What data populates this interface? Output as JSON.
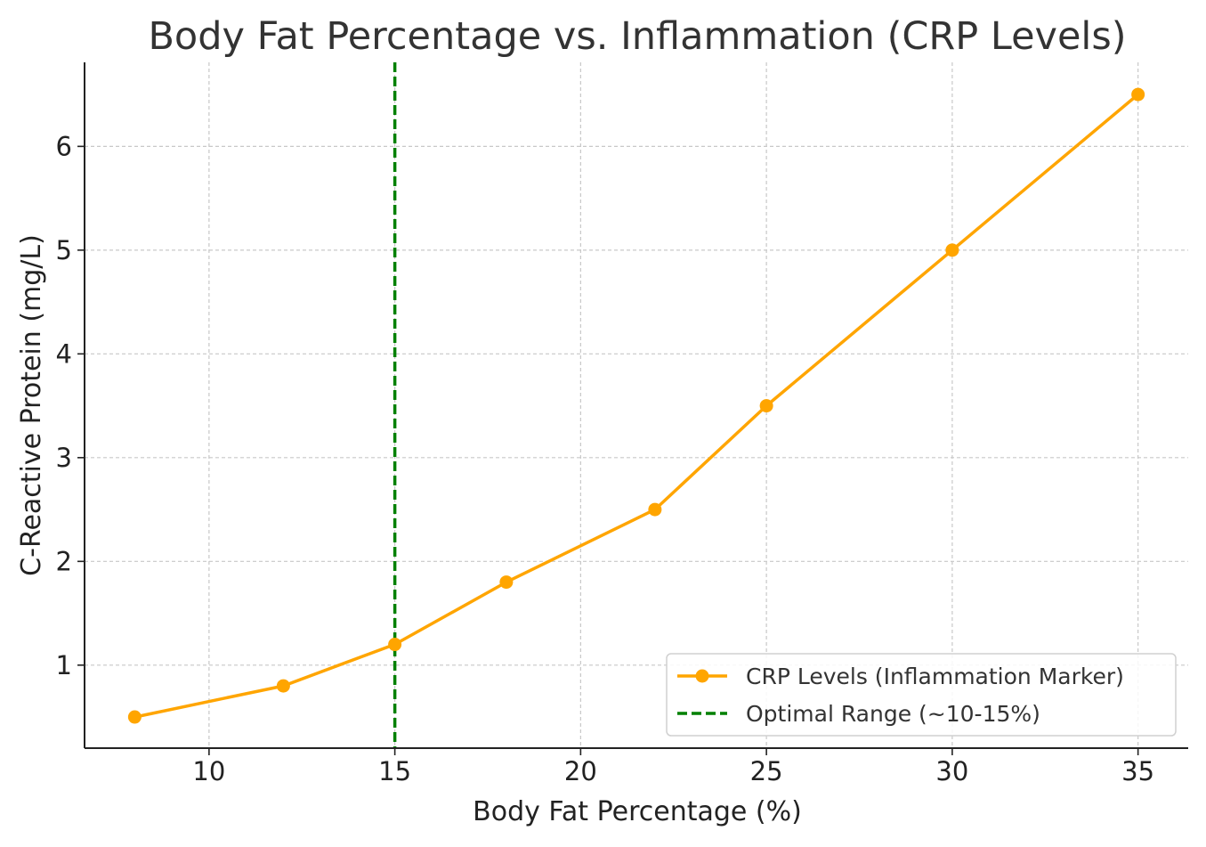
{
  "chart_data": {
    "type": "line",
    "title": "Body Fat Percentage vs. Inflammation (CRP Levels)",
    "xlabel": "Body Fat Percentage (%)",
    "ylabel": "C-Reactive Protein (mg/L)",
    "xlim": [
      6.65,
      36.35
    ],
    "ylim": [
      0.2,
      6.81
    ],
    "xticks": [
      10,
      15,
      20,
      25,
      30,
      35
    ],
    "yticks": [
      1,
      2,
      3,
      4,
      5,
      6
    ],
    "grid": true,
    "legend_position": "lower-right",
    "series": [
      {
        "name": "CRP Levels (Inflammation Marker)",
        "color": "#ffa500",
        "marker": "circle",
        "x": [
          8,
          12,
          15,
          18,
          22,
          25,
          30,
          35
        ],
        "y": [
          0.5,
          0.8,
          1.2,
          1.8,
          2.5,
          3.5,
          5.0,
          6.5
        ]
      }
    ],
    "reference_lines": [
      {
        "name": "Optimal Range (~10-15%)",
        "orientation": "vertical",
        "x": 15,
        "color": "#008000",
        "style": "dashed"
      }
    ]
  }
}
